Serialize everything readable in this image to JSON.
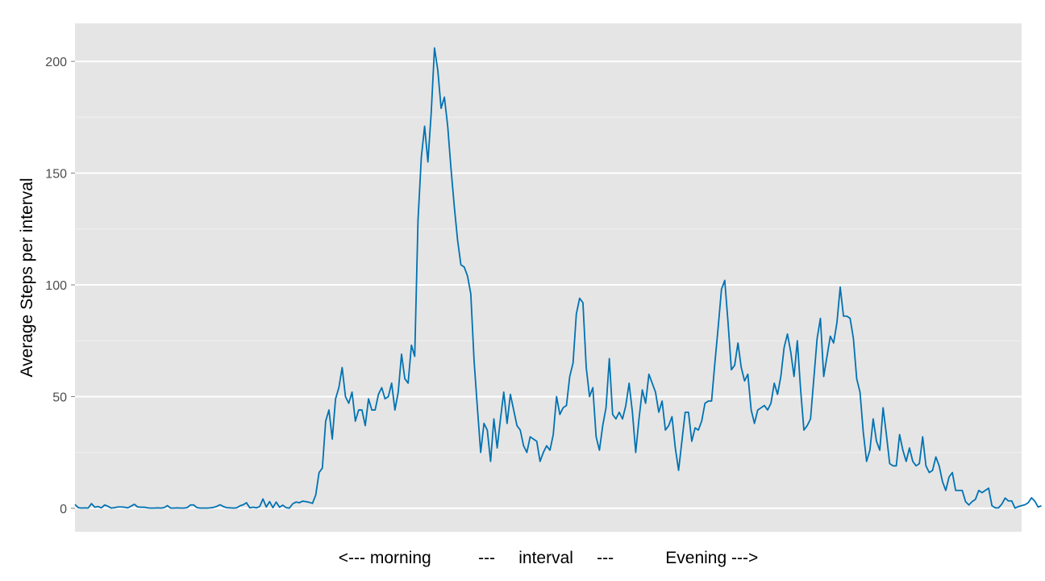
{
  "chart_data": {
    "type": "line",
    "title": "",
    "xlabel": "<--- morning          ---     interval     ---           Evening --->",
    "ylabel": "Average Steps per interval",
    "x_range": [
      0,
      287
    ],
    "ylim": [
      -10.5,
      217
    ],
    "y_ticks": [
      0,
      50,
      100,
      150,
      200
    ],
    "y_tick_labels": [
      "0",
      "50",
      "100",
      "150",
      "200"
    ],
    "grid": true,
    "legend": "none",
    "colors": {
      "panel": "#e5e5e5",
      "grid": "#ffffff",
      "line": "#0072b2"
    },
    "series": [
      {
        "values": [
          1.7,
          0.3,
          0.1,
          0.2,
          0.1,
          2.1,
          0.5,
          0.8,
          0.2,
          1.5,
          0.9,
          0.1,
          0.3,
          0.6,
          0.6,
          0.5,
          0.2,
          1.0,
          1.8,
          0.6,
          0.5,
          0.5,
          0.2,
          0.1,
          0.1,
          0.2,
          0.1,
          0.3,
          1.2,
          0.1,
          0.1,
          0.2,
          0.1,
          0.1,
          0.3,
          1.5,
          1.5,
          0.3,
          0.1,
          0.1,
          0.1,
          0.2,
          0.4,
          0.9,
          1.6,
          0.8,
          0.3,
          0.2,
          0.1,
          0.2,
          1.1,
          1.6,
          2.5,
          0.2,
          0.5,
          0.2,
          0.8,
          4.2,
          0.6,
          3.0,
          0.3,
          2.8,
          0.5,
          1.4,
          0.3,
          0.1,
          2.0,
          2.8,
          2.5,
          3.2,
          3.0,
          2.7,
          2.2,
          6.0,
          16.0,
          18.0,
          39.0,
          44.0,
          31.0,
          49.0,
          54.0,
          63.0,
          50.0,
          47.0,
          52.0,
          39.0,
          44.0,
          44.0,
          37.0,
          49.0,
          44.0,
          44.0,
          51.0,
          54.0,
          49.0,
          50.0,
          56.0,
          44.0,
          52.0,
          69.0,
          58.0,
          56.0,
          73.0,
          68.0,
          129.0,
          157.0,
          171.0,
          155.0,
          177.0,
          206.0,
          196.0,
          179.0,
          184.0,
          171.0,
          152.0,
          135.0,
          120.0,
          109.0,
          108.0,
          104.0,
          96.0,
          66.0,
          45.0,
          25.0,
          38.0,
          35.0,
          21.0,
          40.0,
          27.0,
          40.0,
          52.0,
          38.0,
          51.0,
          44.0,
          37.0,
          35.0,
          28.0,
          25.0,
          32.0,
          31.0,
          30.0,
          21.0,
          25.0,
          28.0,
          26.0,
          33.0,
          50.0,
          42.0,
          45.0,
          46.0,
          59.0,
          65.0,
          87.0,
          94.0,
          92.0,
          63.0,
          50.0,
          54.0,
          32.0,
          26.0,
          37.0,
          45.0,
          67.0,
          42.0,
          40.0,
          43.0,
          40.0,
          46.0,
          56.0,
          43.0,
          25.0,
          40.0,
          53.0,
          47.0,
          60.0,
          56.0,
          52.0,
          43.0,
          48.0,
          35.0,
          37.0,
          41.0,
          27.0,
          17.0,
          30.0,
          43.0,
          43.0,
          30.0,
          36.0,
          35.0,
          39.0,
          47.0,
          48.0,
          48.0,
          65.0,
          81.0,
          98.0,
          102.0,
          83.0,
          62.0,
          64.0,
          74.0,
          63.0,
          57.0,
          60.0,
          44.0,
          38.0,
          44.0,
          45.0,
          46.0,
          44.0,
          47.0,
          56.0,
          51.0,
          59.0,
          72.0,
          78.0,
          70.0,
          59.0,
          75.0,
          53.0,
          35.0,
          37.0,
          40.0,
          58.0,
          76.0,
          85.0,
          59.0,
          68.0,
          77.0,
          74.0,
          83.0,
          99.0,
          86.0,
          86.0,
          85.0,
          76.0,
          58.0,
          52.0,
          34.0,
          21.0,
          26.0,
          40.0,
          30.0,
          26.0,
          45.0,
          33.0,
          20.0,
          19.0,
          19.0,
          33.0,
          26.0,
          21.0,
          27.0,
          21.0,
          19.0,
          20.0,
          32.0,
          19.0,
          16.0,
          17.0,
          23.0,
          19.0,
          12.0,
          8.0,
          14.0,
          16.0,
          8.0,
          8.0,
          8.0,
          3.0,
          1.5,
          3.0,
          4.0,
          8.0,
          7.0,
          8.0,
          9.0,
          1.2,
          0.2,
          0.2,
          1.9,
          4.6,
          3.3,
          3.3,
          0.1,
          0.8,
          1.2,
          1.6,
          2.5,
          4.7,
          3.2,
          0.6,
          1.1
        ]
      }
    ]
  }
}
